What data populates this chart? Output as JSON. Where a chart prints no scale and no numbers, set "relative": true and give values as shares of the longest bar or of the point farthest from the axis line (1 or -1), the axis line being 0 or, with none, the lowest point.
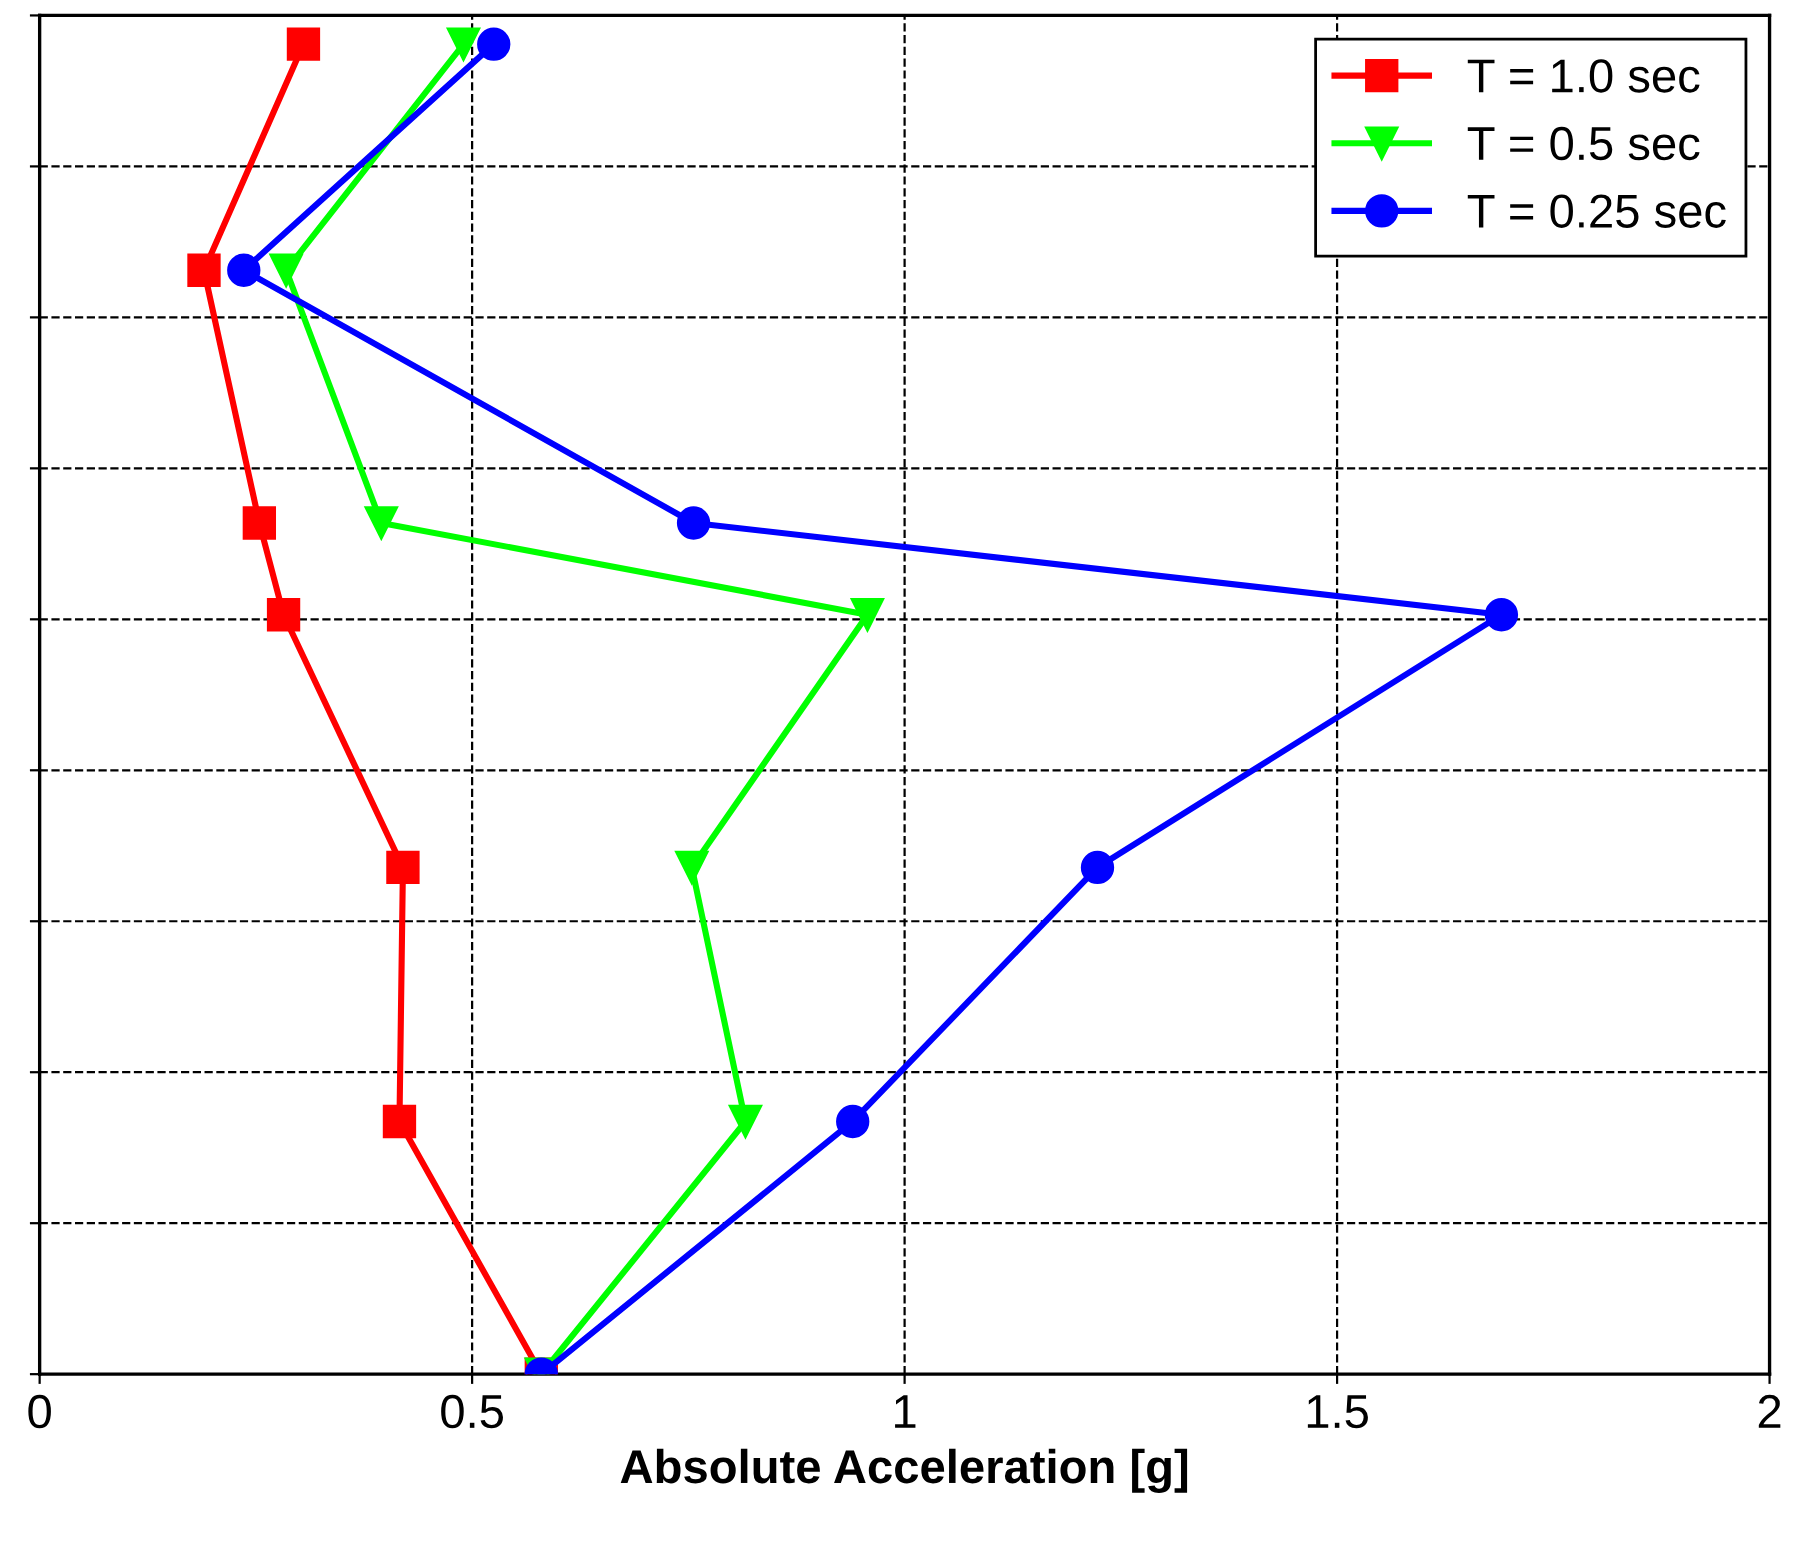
{
  "chart_data": {
    "type": "line",
    "xlabel": "Absolute Acceleration [g]",
    "xlim": [
      0,
      2
    ],
    "xticks": [
      0,
      0.5,
      1,
      1.5,
      2
    ],
    "relative": true,
    "grid": true,
    "legend": "top right",
    "series": [
      {
        "name": "T = 1.0 sec",
        "color": "#ff0000",
        "marker": "square",
        "x": [
          0.305,
          0.19,
          0.254,
          0.282,
          0.42,
          0.416,
          0.58
        ],
        "values": [
          1,
          0.83,
          0.64,
          0.571,
          0.381,
          0.19,
          0
        ]
      },
      {
        "name": "T = 0.5 sec",
        "color": "#00ff00",
        "marker": "triangle",
        "x": [
          0.49,
          0.285,
          0.395,
          0.957,
          0.754,
          0.816,
          0.58
        ],
        "values": [
          1,
          0.83,
          0.64,
          0.571,
          0.381,
          0.19,
          0
        ]
      },
      {
        "name": "T = 0.25 sec",
        "color": "#0000ff",
        "marker": "circle",
        "x": [
          0.525,
          0.236,
          0.756,
          1.69,
          1.223,
          0.94,
          0.58
        ],
        "values": [
          1,
          0.83,
          0.64,
          0.571,
          0.381,
          0.19,
          0
        ]
      }
    ]
  }
}
